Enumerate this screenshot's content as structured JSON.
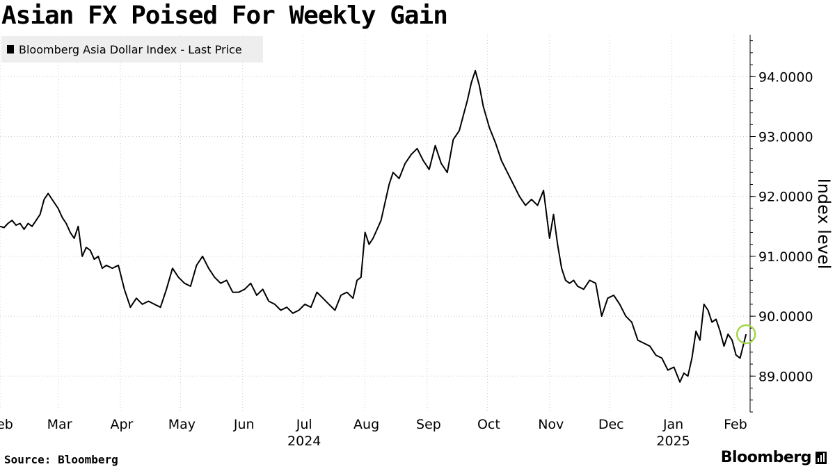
{
  "title": "Asian FX Poised For Weekly Gain",
  "footer": {
    "source": "Source: Bloomberg",
    "brand": "Bloomberg",
    "brand_icon": "bloomberg-terminal-icon"
  },
  "colors": {
    "line": "#000000",
    "grid": "#cccccc",
    "legend_bg": "#eeeeee",
    "highlight": "#a3d84a",
    "text": "#000000"
  },
  "chart_data": {
    "type": "line",
    "title": "Asian FX Poised For Weekly Gain",
    "ylabel": "Index level",
    "xlabel": "",
    "legend": {
      "placement": "top-left",
      "entries": [
        "Bloomberg Asia Dollar Index - Last Price"
      ]
    },
    "grid": {
      "x": true,
      "y": true,
      "style": "dotted"
    },
    "ylim": [
      88.4,
      94.7
    ],
    "yticks": [
      89.0,
      90.0,
      91.0,
      92.0,
      93.0,
      94.0
    ],
    "ytick_labels": [
      "89.0000",
      "90.0000",
      "91.0000",
      "92.0000",
      "93.0000",
      "94.0000"
    ],
    "yaxis_side": "right",
    "xlim": [
      "2024-02-01",
      "2025-02-09"
    ],
    "xticks": [
      {
        "label": "Feb",
        "date": "2024-02-01"
      },
      {
        "label": "Mar",
        "date": "2024-03-01"
      },
      {
        "label": "Apr",
        "date": "2024-04-01"
      },
      {
        "label": "May",
        "date": "2024-05-01"
      },
      {
        "label": "Jun",
        "date": "2024-06-01"
      },
      {
        "label": "Jul",
        "date": "2024-07-01"
      },
      {
        "label": "Aug",
        "date": "2024-08-01"
      },
      {
        "label": "Sep",
        "date": "2024-09-01"
      },
      {
        "label": "Oct",
        "date": "2024-10-01"
      },
      {
        "label": "Nov",
        "date": "2024-11-01"
      },
      {
        "label": "Dec",
        "date": "2024-12-01"
      },
      {
        "label": "Jan",
        "date": "2025-01-01"
      },
      {
        "label": "Feb",
        "date": "2025-02-01"
      }
    ],
    "year_labels": [
      {
        "label": "2024",
        "date": "2024-07-01"
      },
      {
        "label": "2025",
        "date": "2025-01-01"
      }
    ],
    "highlight_point": {
      "x": "2025-02-07",
      "y": 89.7
    },
    "series": [
      {
        "name": "Bloomberg Asia Dollar Index - Last Price",
        "x": [
          "2024-02-01",
          "2024-02-03",
          "2024-02-05",
          "2024-02-07",
          "2024-02-09",
          "2024-02-11",
          "2024-02-13",
          "2024-02-15",
          "2024-02-17",
          "2024-02-19",
          "2024-02-21",
          "2024-02-23",
          "2024-02-25",
          "2024-02-27",
          "2024-03-01",
          "2024-03-03",
          "2024-03-05",
          "2024-03-07",
          "2024-03-09",
          "2024-03-11",
          "2024-03-13",
          "2024-03-15",
          "2024-03-17",
          "2024-03-19",
          "2024-03-21",
          "2024-03-23",
          "2024-03-25",
          "2024-03-28",
          "2024-03-31",
          "2024-04-03",
          "2024-04-06",
          "2024-04-09",
          "2024-04-12",
          "2024-04-15",
          "2024-04-18",
          "2024-04-21",
          "2024-04-24",
          "2024-04-27",
          "2024-04-30",
          "2024-05-03",
          "2024-05-06",
          "2024-05-09",
          "2024-05-12",
          "2024-05-15",
          "2024-05-18",
          "2024-05-21",
          "2024-05-24",
          "2024-05-27",
          "2024-05-30",
          "2024-06-02",
          "2024-06-05",
          "2024-06-08",
          "2024-06-11",
          "2024-06-14",
          "2024-06-17",
          "2024-06-20",
          "2024-06-23",
          "2024-06-26",
          "2024-06-29",
          "2024-07-02",
          "2024-07-05",
          "2024-07-08",
          "2024-07-11",
          "2024-07-14",
          "2024-07-17",
          "2024-07-20",
          "2024-07-23",
          "2024-07-26",
          "2024-07-28",
          "2024-07-30",
          "2024-08-01",
          "2024-08-03",
          "2024-08-05",
          "2024-08-07",
          "2024-08-09",
          "2024-08-11",
          "2024-08-13",
          "2024-08-15",
          "2024-08-18",
          "2024-08-21",
          "2024-08-24",
          "2024-08-27",
          "2024-08-30",
          "2024-09-02",
          "2024-09-05",
          "2024-09-08",
          "2024-09-11",
          "2024-09-14",
          "2024-09-17",
          "2024-09-19",
          "2024-09-21",
          "2024-09-23",
          "2024-09-25",
          "2024-09-27",
          "2024-09-29",
          "2024-10-02",
          "2024-10-05",
          "2024-10-08",
          "2024-10-11",
          "2024-10-14",
          "2024-10-17",
          "2024-10-20",
          "2024-10-23",
          "2024-10-26",
          "2024-10-29",
          "2024-11-01",
          "2024-11-03",
          "2024-11-05",
          "2024-11-07",
          "2024-11-09",
          "2024-11-11",
          "2024-11-13",
          "2024-11-15",
          "2024-11-18",
          "2024-11-21",
          "2024-11-24",
          "2024-11-27",
          "2024-11-30",
          "2024-12-03",
          "2024-12-06",
          "2024-12-09",
          "2024-12-12",
          "2024-12-15",
          "2024-12-18",
          "2024-12-21",
          "2024-12-24",
          "2024-12-27",
          "2024-12-30",
          "2025-01-02",
          "2025-01-05",
          "2025-01-07",
          "2025-01-09",
          "2025-01-11",
          "2025-01-13",
          "2025-01-15",
          "2025-01-17",
          "2025-01-19",
          "2025-01-21",
          "2025-01-23",
          "2025-01-25",
          "2025-01-27",
          "2025-01-29",
          "2025-01-31",
          "2025-02-02",
          "2025-02-04",
          "2025-02-07"
        ],
        "values": [
          91.5,
          91.48,
          91.55,
          91.6,
          91.52,
          91.55,
          91.45,
          91.55,
          91.5,
          91.6,
          91.7,
          91.95,
          92.05,
          91.95,
          91.8,
          91.65,
          91.55,
          91.4,
          91.3,
          91.5,
          91.0,
          91.15,
          91.1,
          90.95,
          91.0,
          90.8,
          90.85,
          90.8,
          90.85,
          90.45,
          90.15,
          90.3,
          90.2,
          90.25,
          90.2,
          90.15,
          90.45,
          90.8,
          90.65,
          90.55,
          90.5,
          90.85,
          91.0,
          90.8,
          90.65,
          90.55,
          90.6,
          90.4,
          90.4,
          90.45,
          90.55,
          90.35,
          90.45,
          90.25,
          90.2,
          90.1,
          90.15,
          90.05,
          90.1,
          90.2,
          90.15,
          90.4,
          90.3,
          90.2,
          90.1,
          90.35,
          90.4,
          90.3,
          90.6,
          90.65,
          91.4,
          91.2,
          91.3,
          91.45,
          91.6,
          91.9,
          92.2,
          92.4,
          92.3,
          92.55,
          92.7,
          92.8,
          92.6,
          92.45,
          92.85,
          92.55,
          92.4,
          92.95,
          93.1,
          93.35,
          93.6,
          93.9,
          94.1,
          93.85,
          93.5,
          93.15,
          92.9,
          92.6,
          92.4,
          92.2,
          92.0,
          91.85,
          91.95,
          91.85,
          92.1,
          91.3,
          91.7,
          91.2,
          90.8,
          90.6,
          90.55,
          90.6,
          90.5,
          90.45,
          90.6,
          90.55,
          90.0,
          90.3,
          90.35,
          90.2,
          90.0,
          89.9,
          89.6,
          89.55,
          89.5,
          89.35,
          89.3,
          89.1,
          89.15,
          88.9,
          89.05,
          89.0,
          89.3,
          89.75,
          89.6,
          90.2,
          90.1,
          89.9,
          89.95,
          89.75,
          89.5,
          89.7,
          89.6,
          89.35,
          89.3,
          89.7
        ]
      }
    ]
  }
}
